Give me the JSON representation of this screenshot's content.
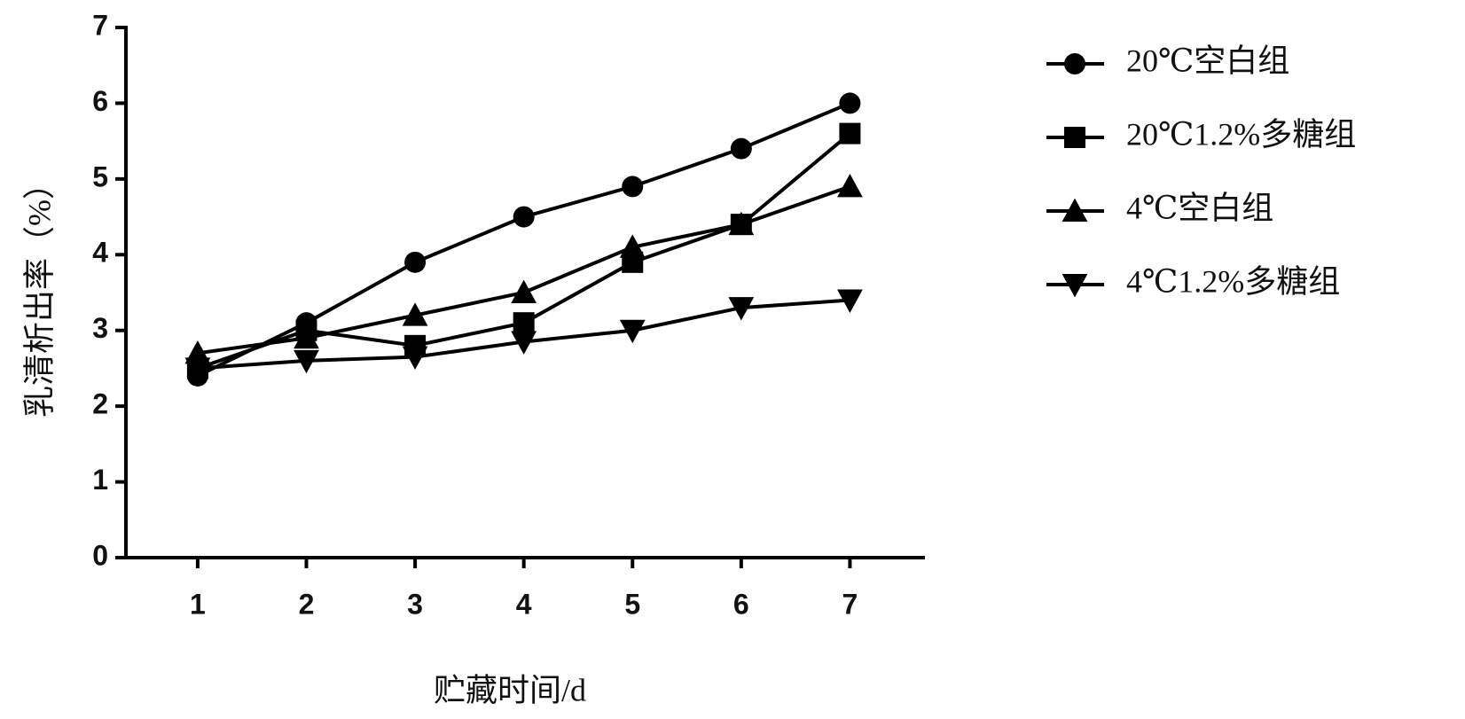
{
  "chart_data": {
    "type": "line",
    "x_label": "贮藏时间/d",
    "y_label": "乳清析出率（%）",
    "x": [
      1,
      2,
      3,
      4,
      5,
      6,
      7
    ],
    "xlim": [
      0.34,
      7.69
    ],
    "xticks": [
      1,
      2,
      3,
      4,
      5,
      6,
      7
    ],
    "ylim": [
      0,
      7
    ],
    "yticks": [
      0,
      1,
      2,
      3,
      4,
      5,
      6,
      7
    ],
    "series": [
      {
        "name": "20℃空白组",
        "color": "#000000",
        "marker": "circle",
        "values": [
          2.4,
          3.1,
          3.9,
          4.5,
          4.9,
          5.4,
          6.0
        ]
      },
      {
        "name": "20℃1.2%多糖组",
        "color": "#000000",
        "marker": "square",
        "values": [
          2.5,
          3.0,
          2.8,
          3.1,
          3.9,
          4.4,
          5.6
        ]
      },
      {
        "name": "4℃空白组",
        "color": "#000000",
        "marker": "triangle-up",
        "values": [
          2.7,
          2.9,
          3.2,
          3.5,
          4.1,
          4.4,
          4.9
        ]
      },
      {
        "name": "4℃1.2%多糖组",
        "color": "#000000",
        "marker": "triangle-down",
        "values": [
          2.5,
          2.6,
          2.65,
          2.85,
          3.0,
          3.3,
          3.4
        ]
      }
    ]
  }
}
